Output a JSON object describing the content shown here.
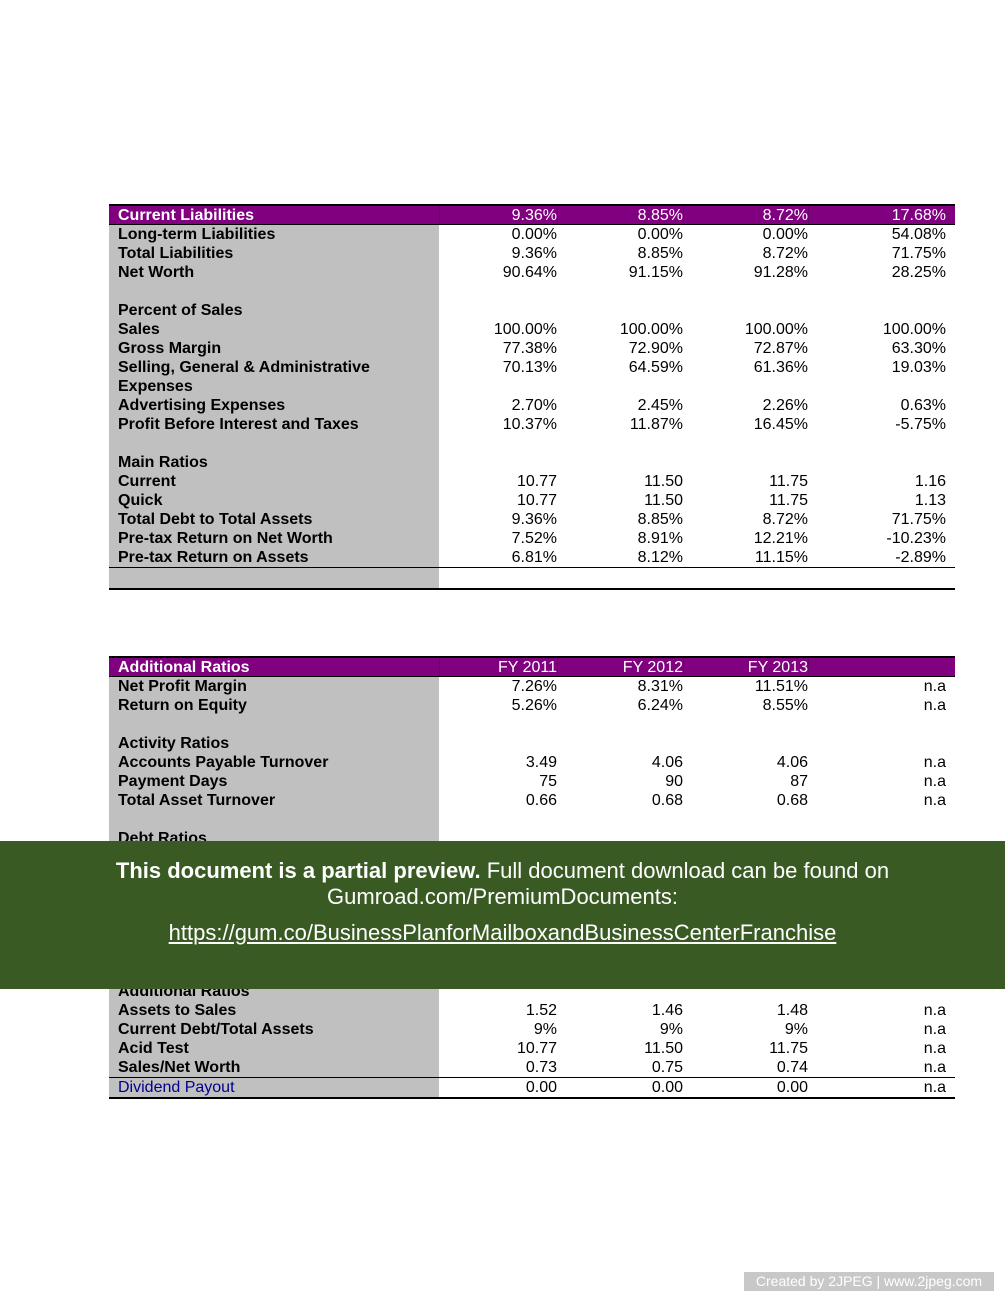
{
  "table1": {
    "header": {
      "label": "Current Liabilities",
      "values": [
        "9.36%",
        "8.85%",
        "8.72%",
        "17.68%"
      ]
    },
    "rows": [
      {
        "label": "Long-term Liabilities",
        "values": [
          "0.00%",
          "0.00%",
          "0.00%",
          "54.08%"
        ]
      },
      {
        "label": "Total Liabilities",
        "values": [
          "9.36%",
          "8.85%",
          "8.72%",
          "71.75%"
        ]
      },
      {
        "label": "Net Worth",
        "values": [
          "90.64%",
          "91.15%",
          "91.28%",
          "28.25%"
        ]
      },
      {
        "label": "",
        "values": [
          "",
          "",
          "",
          ""
        ]
      },
      {
        "label": "Percent of Sales",
        "values": [
          "",
          "",
          "",
          ""
        ]
      },
      {
        "label": "Sales",
        "values": [
          "100.00%",
          "100.00%",
          "100.00%",
          "100.00%"
        ]
      },
      {
        "label": "Gross Margin",
        "values": [
          "77.38%",
          "72.90%",
          "72.87%",
          "63.30%"
        ]
      },
      {
        "label": "Selling, General & Administrative Expenses",
        "values": [
          "70.13%",
          "64.59%",
          "61.36%",
          "19.03%"
        ],
        "tall": true
      },
      {
        "label": "Advertising Expenses",
        "values": [
          "2.70%",
          "2.45%",
          "2.26%",
          "0.63%"
        ]
      },
      {
        "label": "Profit Before Interest and Taxes",
        "values": [
          "10.37%",
          "11.87%",
          "16.45%",
          "-5.75%"
        ]
      },
      {
        "label": "",
        "values": [
          "",
          "",
          "",
          ""
        ]
      },
      {
        "label": "Main Ratios",
        "values": [
          "",
          "",
          "",
          ""
        ]
      },
      {
        "label": "Current",
        "values": [
          "10.77",
          "11.50",
          "11.75",
          "1.16"
        ]
      },
      {
        "label": "Quick",
        "values": [
          "10.77",
          "11.50",
          "11.75",
          "1.13"
        ]
      },
      {
        "label": "Total Debt to Total Assets",
        "values": [
          "9.36%",
          "8.85%",
          "8.72%",
          "71.75%"
        ]
      },
      {
        "label": "Pre-tax Return on Net Worth",
        "values": [
          "7.52%",
          "8.91%",
          "12.21%",
          "-10.23%"
        ]
      },
      {
        "label": "Pre-tax Return on Assets",
        "values": [
          "6.81%",
          "8.12%",
          "11.15%",
          "-2.89%"
        ]
      }
    ]
  },
  "table2": {
    "header": {
      "label": "Additional Ratios",
      "values": [
        "FY 2011",
        "FY 2012",
        "FY 2013",
        ""
      ]
    },
    "rows": [
      {
        "label": "Net Profit Margin",
        "values": [
          "7.26%",
          "8.31%",
          "11.51%",
          "n.a"
        ]
      },
      {
        "label": "Return on Equity",
        "values": [
          "5.26%",
          "6.24%",
          "8.55%",
          "n.a"
        ]
      },
      {
        "label": "",
        "values": [
          "",
          "",
          "",
          ""
        ]
      },
      {
        "label": "Activity Ratios",
        "values": [
          "",
          "",
          "",
          ""
        ]
      },
      {
        "label": "Accounts Payable Turnover",
        "values": [
          "3.49",
          "4.06",
          "4.06",
          "n.a"
        ]
      },
      {
        "label": "Payment Days",
        "values": [
          "75",
          "90",
          "87",
          "n.a"
        ]
      },
      {
        "label": "Total Asset Turnover",
        "values": [
          "0.66",
          "0.68",
          "0.68",
          "n.a"
        ]
      },
      {
        "label": "",
        "values": [
          "",
          "",
          "",
          ""
        ]
      },
      {
        "label": "Debt Ratios",
        "values": [
          "",
          "",
          "",
          ""
        ]
      }
    ],
    "lower_rows": [
      {
        "label": "Additional Ratios",
        "values": [
          "",
          "",
          "",
          ""
        ]
      },
      {
        "label": "Assets to Sales",
        "values": [
          "1.52",
          "1.46",
          "1.48",
          "n.a"
        ]
      },
      {
        "label": "Current Debt/Total Assets",
        "values": [
          "9%",
          "9%",
          "9%",
          "n.a"
        ]
      },
      {
        "label": "Acid Test",
        "values": [
          "10.77",
          "11.50",
          "11.75",
          "n.a"
        ]
      },
      {
        "label": "Sales/Net Worth",
        "values": [
          "0.73",
          "0.75",
          "0.74",
          "n.a"
        ]
      }
    ],
    "dividend": {
      "label": "Dividend Payout",
      "values": [
        "0.00",
        "0.00",
        "0.00",
        "n.a"
      ]
    }
  },
  "overlay": {
    "bold": "This document is a partial preview.",
    "rest": " Full document download can be found on",
    "line2": "Gumroad.com/PremiumDocuments:",
    "link": "https://gum.co/BusinessPlanforMailboxandBusinessCenterFranchise",
    "bg_color": "#3a5a24"
  },
  "watermark": "Created by 2JPEG | www.2jpeg.com",
  "colors": {
    "header": "#800080",
    "label_column": "#c0c0c0",
    "link_label": "#00008b"
  }
}
